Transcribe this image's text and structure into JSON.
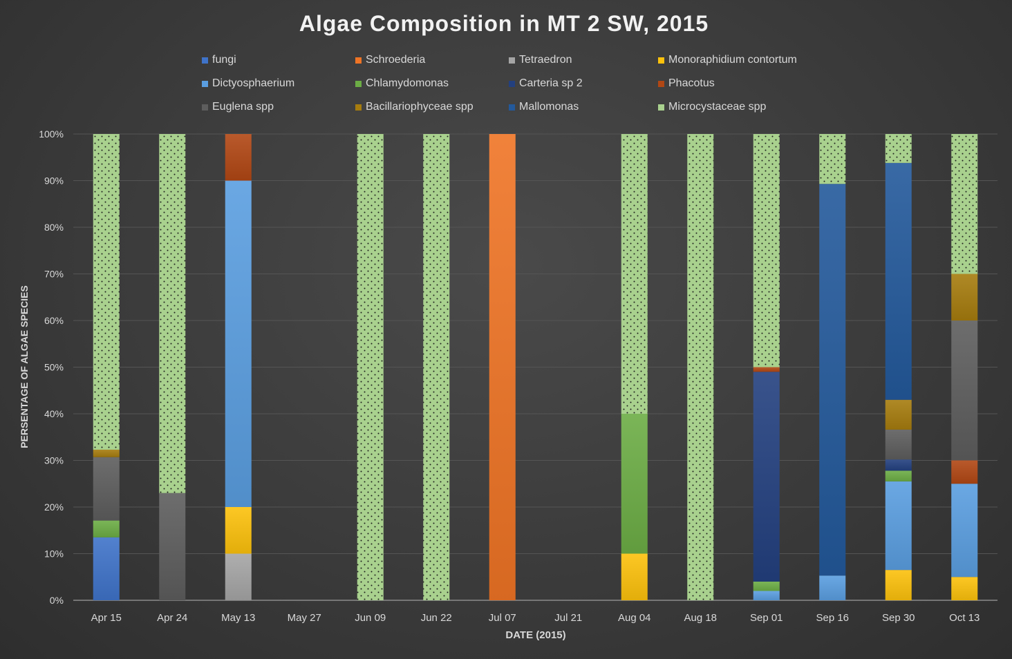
{
  "chart_data": {
    "type": "bar",
    "stacked": true,
    "normalized": true,
    "title": "Algae Composition in MT 2  SW, 2015",
    "xlabel": "DATE (2015)",
    "ylabel": "PERSENTAGE OF ALGAE SPECIES",
    "ylim": [
      0,
      100
    ],
    "yticks": [
      "0%",
      "10%",
      "20%",
      "30%",
      "40%",
      "50%",
      "60%",
      "70%",
      "80%",
      "90%",
      "100%"
    ],
    "grid": true,
    "legend_position": "top",
    "categories": [
      "Apr 15",
      "Apr 24",
      "May 13",
      "May 27",
      "Jun 09",
      "Jun 22",
      "Jul 07",
      "Jul 21",
      "Aug 04",
      "Aug 18",
      "Sep 01",
      "Sep 16",
      "Sep 30",
      "Oct 13"
    ],
    "series": [
      {
        "name": "fungi",
        "color": "#3f73c9",
        "values": [
          13.5,
          0,
          0,
          0,
          0,
          0,
          0,
          0,
          0,
          0,
          0,
          0,
          0,
          0
        ]
      },
      {
        "name": "Schroederia",
        "color": "#ef7425",
        "values": [
          0,
          0,
          0,
          0,
          0,
          0,
          100,
          0,
          0,
          0,
          0,
          0,
          0,
          0
        ]
      },
      {
        "name": "Tetraedron",
        "color": "#a5a5a5",
        "values": [
          0,
          0,
          10,
          0,
          0,
          0,
          0,
          0,
          0,
          0,
          0,
          0,
          0,
          0
        ]
      },
      {
        "name": "Monoraphidium contortum",
        "color": "#fcc10c",
        "values": [
          0,
          0,
          10,
          0,
          0,
          0,
          0,
          0,
          10,
          0,
          0,
          0,
          6.5,
          5
        ]
      },
      {
        "name": "Dictyosphaerium",
        "color": "#5a9ee0",
        "values": [
          0,
          0,
          70,
          0,
          0,
          0,
          0,
          0,
          0,
          0,
          2,
          5.3,
          19,
          20
        ]
      },
      {
        "name": "Chlamydomonas",
        "color": "#6cad45",
        "values": [
          3.6,
          0,
          0,
          0,
          0,
          0,
          0,
          0,
          30,
          0,
          2,
          0,
          2.3,
          0
        ]
      },
      {
        "name": "Carteria sp 2",
        "color": "#23407f",
        "values": [
          0,
          0,
          0,
          0,
          0,
          0,
          0,
          0,
          0,
          0,
          45,
          0,
          2.4,
          0
        ]
      },
      {
        "name": "Phacotus",
        "color": "#b14714",
        "values": [
          0,
          0,
          10,
          0,
          0,
          0,
          0,
          0,
          0,
          0,
          1,
          0,
          0,
          5
        ]
      },
      {
        "name": "Euglena spp",
        "color": "#5d5d5d",
        "values": [
          13.6,
          23,
          0,
          0,
          0,
          0,
          0,
          0,
          0,
          0,
          0,
          0,
          6.4,
          30
        ]
      },
      {
        "name": "Bacillariophyceae spp",
        "color": "#a67c0e",
        "values": [
          1.6,
          0,
          0,
          0,
          0,
          0,
          0,
          0,
          0,
          0,
          0,
          0,
          6.4,
          10
        ]
      },
      {
        "name": "Mallomonas",
        "color": "#23599b",
        "values": [
          0,
          0,
          0,
          0,
          0,
          0,
          0,
          0,
          0,
          0,
          0,
          84,
          50.8,
          0
        ]
      },
      {
        "name": "Microcystaceae spp",
        "color": "#a9d18e",
        "pattern": "dots",
        "values": [
          67.7,
          77,
          0,
          0,
          100,
          100,
          0,
          0,
          60,
          100,
          50,
          10.7,
          6.2,
          30
        ]
      }
    ]
  }
}
